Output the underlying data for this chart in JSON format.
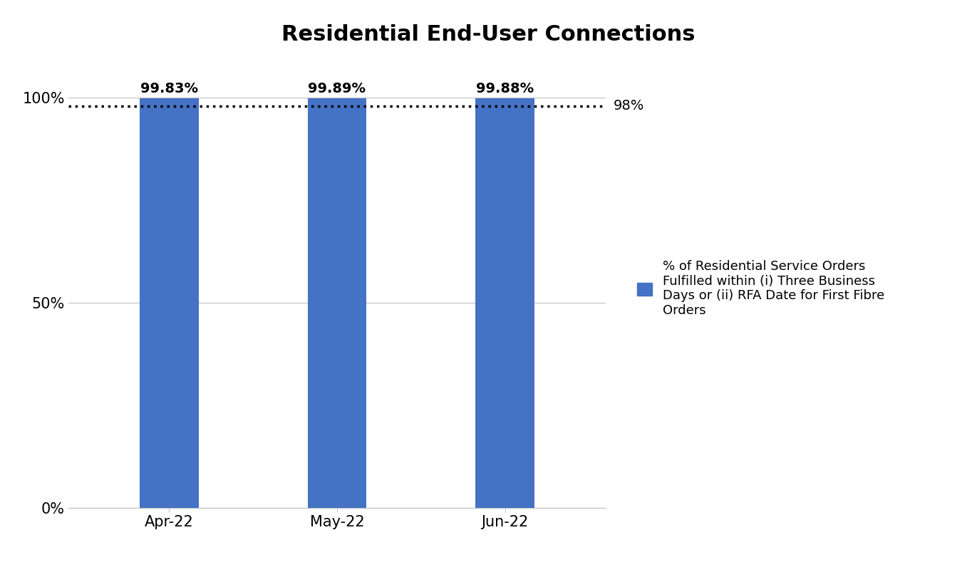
{
  "title": "Residential End-User Connections",
  "categories": [
    "Apr-22",
    "May-22",
    "Jun-22"
  ],
  "values": [
    99.83,
    99.89,
    99.88
  ],
  "bar_labels": [
    "99.83%",
    "99.89%",
    "99.88%"
  ],
  "bar_color": "#4472C4",
  "threshold_value": 98,
  "threshold_label": "98%",
  "ylim": [
    0,
    107
  ],
  "yticks": [
    0,
    50,
    100
  ],
  "ytick_labels": [
    "0%",
    "50%",
    "100%"
  ],
  "title_fontsize": 22,
  "tick_fontsize": 15,
  "bar_label_fontsize": 14,
  "threshold_fontsize": 14,
  "legend_label": "% of Residential Service Orders\nFulfilled within (i) Three Business\nDays or (ii) RFA Date for First Fibre\nOrders",
  "legend_fontsize": 13,
  "background_color": "#FFFFFF",
  "grid_color": "#C0C0C0",
  "bar_width": 0.35
}
